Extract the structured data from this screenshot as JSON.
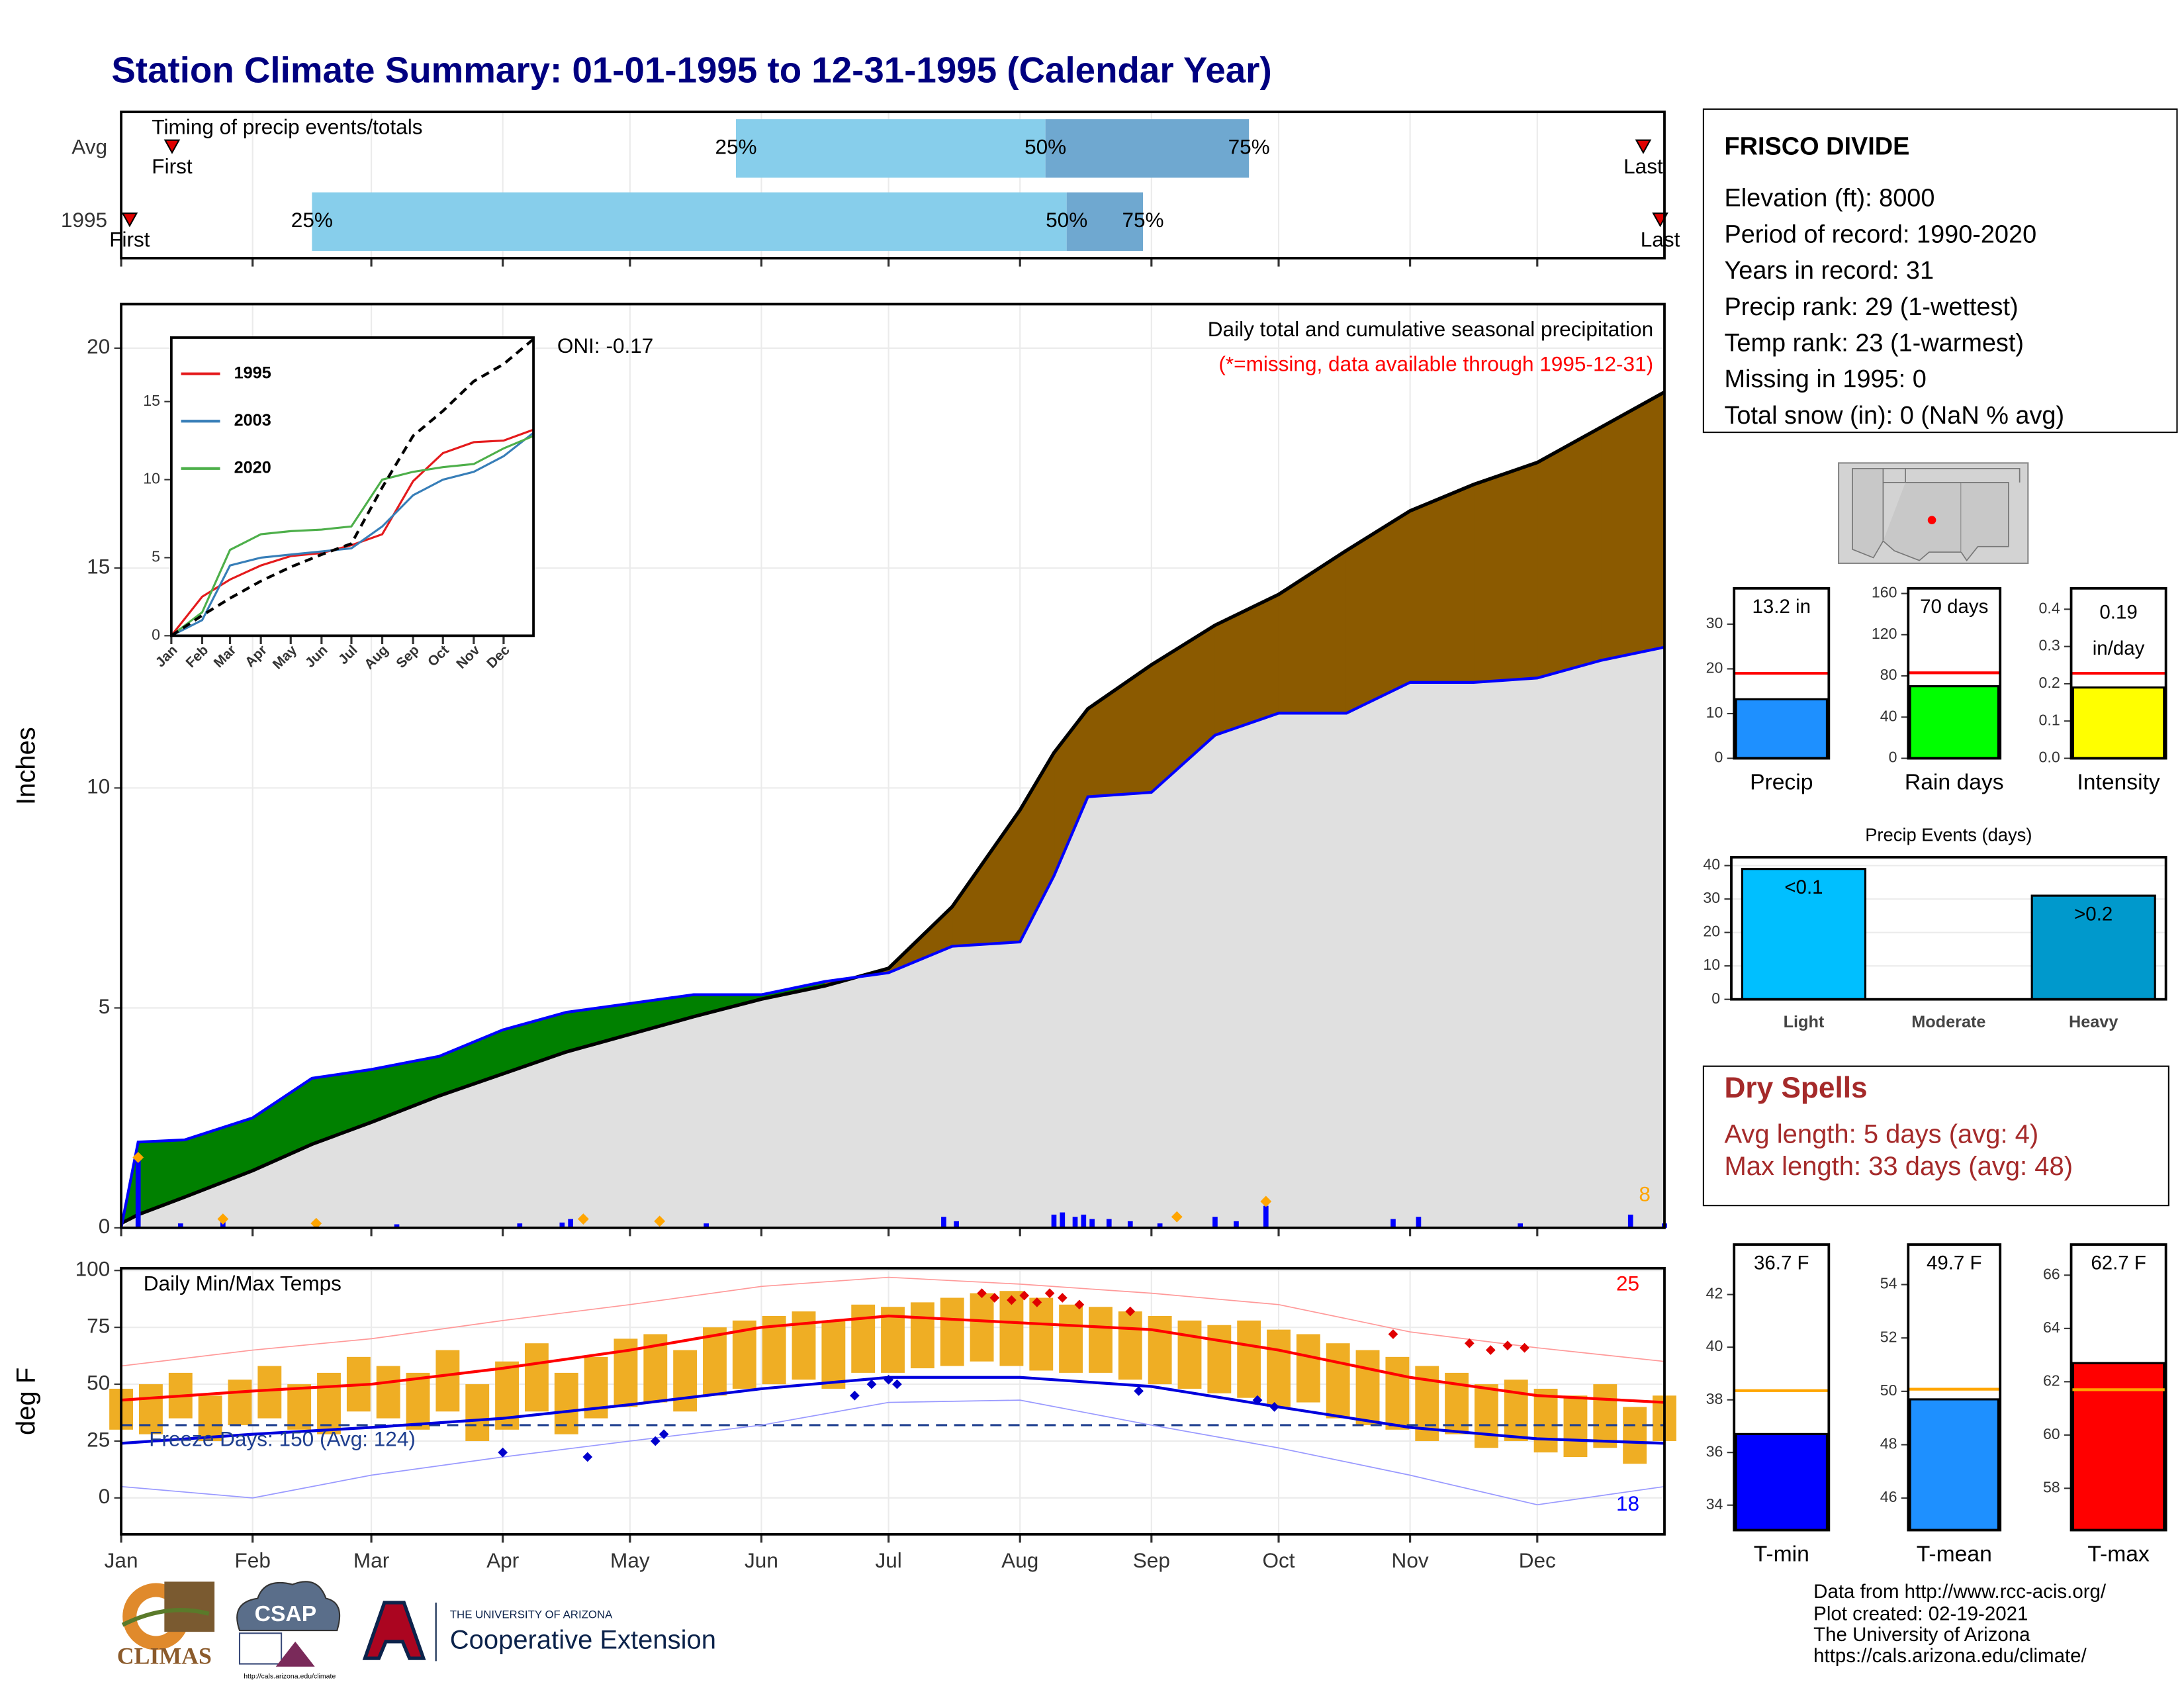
{
  "title": "Station Climate Summary: 01-01-1995 to 12-31-1995 (Calendar Year)",
  "station": {
    "name": "FRISCO DIVIDE",
    "lines": [
      "Elevation (ft): 8000",
      "Period of record: 1990-2020",
      "Years in record: 31",
      "Precip rank: 29 (1-wettest)",
      "Temp rank: 23 (1-warmest)",
      "Missing in 1995: 0",
      "Total snow (in): 0 (NaN % avg)"
    ]
  },
  "dry_spells": {
    "title": "Dry Spells",
    "lines": [
      "Avg length: 5 days (avg: 4)",
      "Max length: 33 days (avg: 48)"
    ]
  },
  "logos": {
    "climas": "CLIMAS",
    "csap": "CSAP",
    "csap_url": "http://cals.arizona.edu/climate",
    "ua": "THE UNIVERSITY OF ARIZONA",
    "extension": "Cooperative Extension"
  },
  "credits": [
    "Data from http://www.rcc-acis.org/",
    "Plot created: 02-19-2021",
    "The University of Arizona",
    "https://cals.arizona.edu/climate/"
  ],
  "chart_data": [
    {
      "type": "range",
      "title": "Timing of precip events/totals",
      "categories": [
        "Avg",
        "1995"
      ],
      "series": [
        {
          "name": "First",
          "values": [
            12,
            2
          ]
        },
        {
          "name": "25%",
          "values": [
            145,
            45
          ]
        },
        {
          "name": "50%",
          "values": [
            218,
            223
          ]
        },
        {
          "name": "75%",
          "values": [
            266,
            241
          ]
        },
        {
          "name": "Last",
          "values": [
            359,
            363
          ]
        }
      ],
      "colors": [
        "#87ceeb",
        "#6fa8d0"
      ],
      "marker_color": "#e00000",
      "xlim": [
        0,
        364
      ],
      "xticks": [
        0,
        31,
        59,
        90,
        120,
        151,
        181,
        212,
        243,
        273,
        304,
        334
      ],
      "grid": true
    },
    {
      "type": "area",
      "subtitle": "Daily total and cumulative seasonal precipitation",
      "note": "(*=missing, data available through 1995-12-31)",
      "oni": "ONI: -0.17",
      "count": "8",
      "ylabel": "Inches",
      "x": [
        0,
        4,
        15,
        31,
        45,
        59,
        75,
        90,
        105,
        120,
        135,
        151,
        166,
        181,
        196,
        212,
        220,
        228,
        243,
        258,
        273,
        289,
        304,
        319,
        334,
        349,
        364
      ],
      "series": [
        {
          "color": "#0000ff",
          "values": [
            0.0,
            1.95,
            2.0,
            2.5,
            3.4,
            3.6,
            3.9,
            4.5,
            4.9,
            5.1,
            5.3,
            5.3,
            5.6,
            5.8,
            6.4,
            6.5,
            8.0,
            9.8,
            9.9,
            11.2,
            11.7,
            11.7,
            12.4,
            12.4,
            12.5,
            12.9,
            13.2
          ]
        },
        {
          "color": "#000000",
          "values": [
            0.1,
            0.3,
            0.7,
            1.3,
            1.9,
            2.4,
            3.0,
            3.5,
            4.0,
            4.4,
            4.8,
            5.2,
            5.5,
            5.9,
            7.3,
            9.5,
            10.8,
            11.8,
            12.8,
            13.7,
            14.4,
            15.4,
            16.3,
            16.9,
            17.4,
            18.2,
            19.0
          ]
        }
      ],
      "fill_above": "#008000",
      "fill_below": "#8b5a00",
      "fill_base": "#e0e0e0",
      "daily": {
        "color": "#0000ff",
        "x": [
          4,
          14,
          24,
          46,
          65,
          94,
          104,
          106,
          138,
          194,
          197,
          220,
          222,
          225,
          227,
          229,
          233,
          238,
          245,
          258,
          263,
          270,
          300,
          306,
          330,
          356,
          364
        ],
        "values": [
          1.6,
          0.1,
          0.15,
          0.1,
          0.08,
          0.1,
          0.12,
          0.2,
          0.1,
          0.25,
          0.15,
          0.3,
          0.35,
          0.25,
          0.3,
          0.2,
          0.2,
          0.15,
          0.1,
          0.25,
          0.15,
          0.5,
          0.2,
          0.25,
          0.1,
          0.3,
          0.1
        ]
      },
      "markers": {
        "color": "#ffa500",
        "x": [
          4,
          24,
          46,
          109,
          127,
          249,
          270
        ],
        "values": [
          1.6,
          0.2,
          0.1,
          0.2,
          0.15,
          0.25,
          0.6
        ]
      },
      "xlim": [
        0,
        364
      ],
      "xticks": [
        0,
        31,
        59,
        90,
        120,
        151,
        181,
        212,
        243,
        273,
        304,
        334
      ],
      "ylim": [
        0,
        21
      ],
      "yticks": [
        0,
        5,
        10,
        15,
        20
      ],
      "grid": true
    },
    {
      "type": "line",
      "x": [
        0,
        31,
        59,
        90,
        120,
        151,
        181,
        212,
        243,
        273,
        304,
        334,
        364
      ],
      "series": [
        {
          "name": "1995",
          "color": "#e41a1c",
          "values": [
            0,
            2.5,
            3.6,
            4.5,
            5.1,
            5.3,
            5.8,
            6.5,
            9.9,
            11.7,
            12.4,
            12.5,
            13.2
          ]
        },
        {
          "name": "2003",
          "color": "#377eb8",
          "values": [
            0,
            1.0,
            4.5,
            5.0,
            5.2,
            5.4,
            5.6,
            7.0,
            9.0,
            10.0,
            10.5,
            11.5,
            13.0
          ]
        },
        {
          "name": "2020",
          "color": "#4daf4a",
          "values": [
            0,
            1.5,
            5.5,
            6.5,
            6.7,
            6.8,
            7.0,
            10.0,
            10.5,
            10.8,
            11.0,
            12.0,
            12.8
          ]
        },
        {
          "color": "#000000",
          "dash": true,
          "values": [
            0,
            1.3,
            2.4,
            3.5,
            4.4,
            5.2,
            5.9,
            9.5,
            12.8,
            14.4,
            16.3,
            17.4,
            19.0
          ]
        }
      ],
      "xlim": [
        0,
        364
      ],
      "xticks": [
        {
          "value": 0,
          "label": "Jan"
        },
        {
          "value": 31,
          "label": "Feb"
        },
        {
          "value": 59,
          "label": "Mar"
        },
        {
          "value": 90,
          "label": "Apr"
        },
        {
          "value": 120,
          "label": "May"
        },
        {
          "value": 151,
          "label": "Jun"
        },
        {
          "value": 181,
          "label": "Jul"
        },
        {
          "value": 212,
          "label": "Aug"
        },
        {
          "value": 243,
          "label": "Sep"
        },
        {
          "value": 273,
          "label": "Oct"
        },
        {
          "value": 304,
          "label": "Nov"
        },
        {
          "value": 334,
          "label": "Dec"
        }
      ],
      "ylim": [
        0,
        19.1
      ],
      "yticks": [
        0,
        5,
        10,
        15
      ],
      "grid": false
    },
    {
      "type": "band",
      "title": "Daily Min/Max Temps",
      "hot_days": "25",
      "cold_days": "18",
      "freeze_text": "Freeze Days: 150 (Avg: 124)",
      "ylabel": "deg F",
      "freeze": 32,
      "bars": {
        "color": "#efae24",
        "x": [
          0,
          7,
          14,
          21,
          28,
          35,
          42,
          49,
          56,
          63,
          70,
          77,
          84,
          91,
          98,
          105,
          112,
          119,
          126,
          133,
          140,
          147,
          154,
          161,
          168,
          175,
          182,
          189,
          196,
          203,
          210,
          217,
          224,
          231,
          238,
          245,
          252,
          259,
          266,
          273,
          280,
          287,
          294,
          301,
          308,
          315,
          322,
          329,
          336,
          343,
          350,
          357,
          364
        ],
        "low": [
          30,
          28,
          35,
          25,
          32,
          35,
          30,
          28,
          38,
          35,
          30,
          38,
          25,
          30,
          38,
          28,
          35,
          40,
          42,
          38,
          45,
          48,
          50,
          52,
          48,
          55,
          55,
          57,
          58,
          60,
          58,
          56,
          55,
          55,
          52,
          50,
          48,
          46,
          44,
          40,
          42,
          35,
          32,
          30,
          25,
          28,
          22,
          25,
          20,
          18,
          22,
          15,
          25
        ],
        "high": [
          48,
          50,
          55,
          45,
          52,
          58,
          50,
          55,
          62,
          58,
          55,
          65,
          50,
          60,
          68,
          55,
          62,
          70,
          72,
          65,
          75,
          78,
          80,
          82,
          78,
          85,
          84,
          86,
          88,
          90,
          91,
          88,
          85,
          84,
          82,
          80,
          78,
          76,
          78,
          74,
          72,
          68,
          65,
          62,
          58,
          55,
          50,
          52,
          48,
          45,
          50,
          40,
          45
        ]
      },
      "normals": {
        "x": [
          0,
          31,
          59,
          90,
          120,
          151,
          181,
          212,
          243,
          273,
          304,
          334,
          364
        ],
        "series": [
          {
            "color": "#ff9999",
            "width": 0.8,
            "values": [
              58,
              65,
              70,
              78,
              85,
              93,
              97,
              94,
              90,
              85,
              73,
              66,
              60
            ]
          },
          {
            "color": "#9999ff",
            "width": 0.8,
            "values": [
              5,
              0,
              10,
              18,
              25,
              32,
              42,
              43,
              32,
              22,
              10,
              -3,
              5
            ]
          },
          {
            "color": "#ff0000",
            "width": 2,
            "values": [
              43,
              47,
              50,
              57,
              65,
              75,
              80,
              77,
              74,
              65,
              53,
              45,
              42
            ]
          },
          {
            "color": "#0000dd",
            "width": 2,
            "values": [
              24,
              28,
              31,
              35,
              41,
              48,
              53,
              53,
              49,
              40,
              31,
              26,
              24
            ]
          }
        ]
      },
      "records": [
        {
          "color": "#e00000",
          "x": [
            203,
            206,
            210,
            213,
            216,
            219,
            222,
            226,
            238,
            300,
            318,
            323,
            327,
            331
          ],
          "values": [
            90,
            88,
            87,
            89,
            86,
            90,
            88,
            85,
            82,
            72,
            68,
            65,
            67,
            66
          ]
        },
        {
          "color": "#0000cc",
          "x": [
            90,
            110,
            126,
            128,
            173,
            177,
            181,
            183,
            240,
            268,
            272
          ],
          "values": [
            20,
            18,
            25,
            28,
            45,
            50,
            52,
            50,
            47,
            43,
            40
          ]
        }
      ],
      "xlim": [
        0,
        364
      ],
      "xticks": [
        {
          "value": 0,
          "label": "Jan"
        },
        {
          "value": 31,
          "label": "Feb"
        },
        {
          "value": 59,
          "label": "Mar"
        },
        {
          "value": 90,
          "label": "Apr"
        },
        {
          "value": 120,
          "label": "May"
        },
        {
          "value": 151,
          "label": "Jun"
        },
        {
          "value": 181,
          "label": "Jul"
        },
        {
          "value": 212,
          "label": "Aug"
        },
        {
          "value": 243,
          "label": "Sep"
        },
        {
          "value": 273,
          "label": "Oct"
        },
        {
          "value": 304,
          "label": "Nov"
        },
        {
          "value": 334,
          "label": "Dec"
        }
      ],
      "ylim": [
        -16,
        101
      ],
      "yticks": [
        0,
        25,
        50,
        75,
        100
      ],
      "grid": true
    },
    {
      "type": "bar",
      "categories": [
        "Precip"
      ],
      "values": [
        13.2
      ],
      "value_labels": [
        "13.2 in"
      ],
      "color": "#1e90ff",
      "avg": 19,
      "avg_color": "#ff0000",
      "ylim": [
        0,
        38
      ],
      "yticks": [
        0,
        10,
        20,
        30
      ]
    },
    {
      "type": "bar",
      "categories": [
        "Rain days"
      ],
      "values": [
        70
      ],
      "value_labels": [
        "70 days"
      ],
      "color": "#00ff00",
      "avg": 83,
      "avg_color": "#ff0000",
      "ylim": [
        0,
        165
      ],
      "yticks": [
        0,
        40,
        80,
        120,
        160
      ]
    },
    {
      "type": "bar",
      "categories": [
        "Intensity"
      ],
      "values": [
        0.19
      ],
      "value_labels": [
        [
          "0.19",
          "in/day"
        ]
      ],
      "color": "#ffff00",
      "avg": 0.228,
      "avg_color": "#ff0000",
      "ylim": [
        0,
        0.456
      ],
      "yticks": [
        {
          "value": 0,
          "label": "0.0"
        },
        {
          "value": 0.1,
          "label": "0.1"
        },
        {
          "value": 0.2,
          "label": "0.2"
        },
        {
          "value": 0.3,
          "label": "0.3"
        },
        {
          "value": 0.4,
          "label": "0.4"
        }
      ]
    },
    {
      "type": "bar",
      "title": "Precip Events (days)",
      "categories": [
        "Light",
        "Moderate",
        "Heavy"
      ],
      "values": [
        39,
        0,
        31
      ],
      "bar_labels": [
        "<0.1",
        null,
        ">0.2"
      ],
      "colors": [
        "#00bfff",
        "#999999",
        "#0099cc"
      ],
      "ylim": [
        0,
        42.5
      ],
      "yticks": [
        0,
        10,
        20,
        30,
        40
      ],
      "grid": true
    },
    {
      "type": "bar",
      "categories": [
        "T-min"
      ],
      "values": [
        36.7
      ],
      "value_labels": [
        "36.7 F"
      ],
      "color": "#0000ff",
      "avg": 38.35,
      "avg_color": "#ffa500",
      "ylim": [
        33.05,
        43.9
      ],
      "yticks": [
        34,
        36,
        38,
        40,
        42
      ]
    },
    {
      "type": "bar",
      "categories": [
        "T-mean"
      ],
      "values": [
        49.7
      ],
      "value_labels": [
        "49.7 F"
      ],
      "color": "#1e90ff",
      "avg": 50.08,
      "avg_color": "#ffa500",
      "ylim": [
        44.8,
        55.5
      ],
      "yticks": [
        46,
        48,
        50,
        52,
        54
      ]
    },
    {
      "type": "bar",
      "categories": [
        "T-max"
      ],
      "values": [
        62.7
      ],
      "value_labels": [
        "62.7 F"
      ],
      "color": "#ff0000",
      "avg": 61.7,
      "avg_color": "#ffa500",
      "ylim": [
        56.43,
        67.15
      ],
      "yticks": [
        58,
        60,
        62,
        64,
        66
      ]
    }
  ]
}
